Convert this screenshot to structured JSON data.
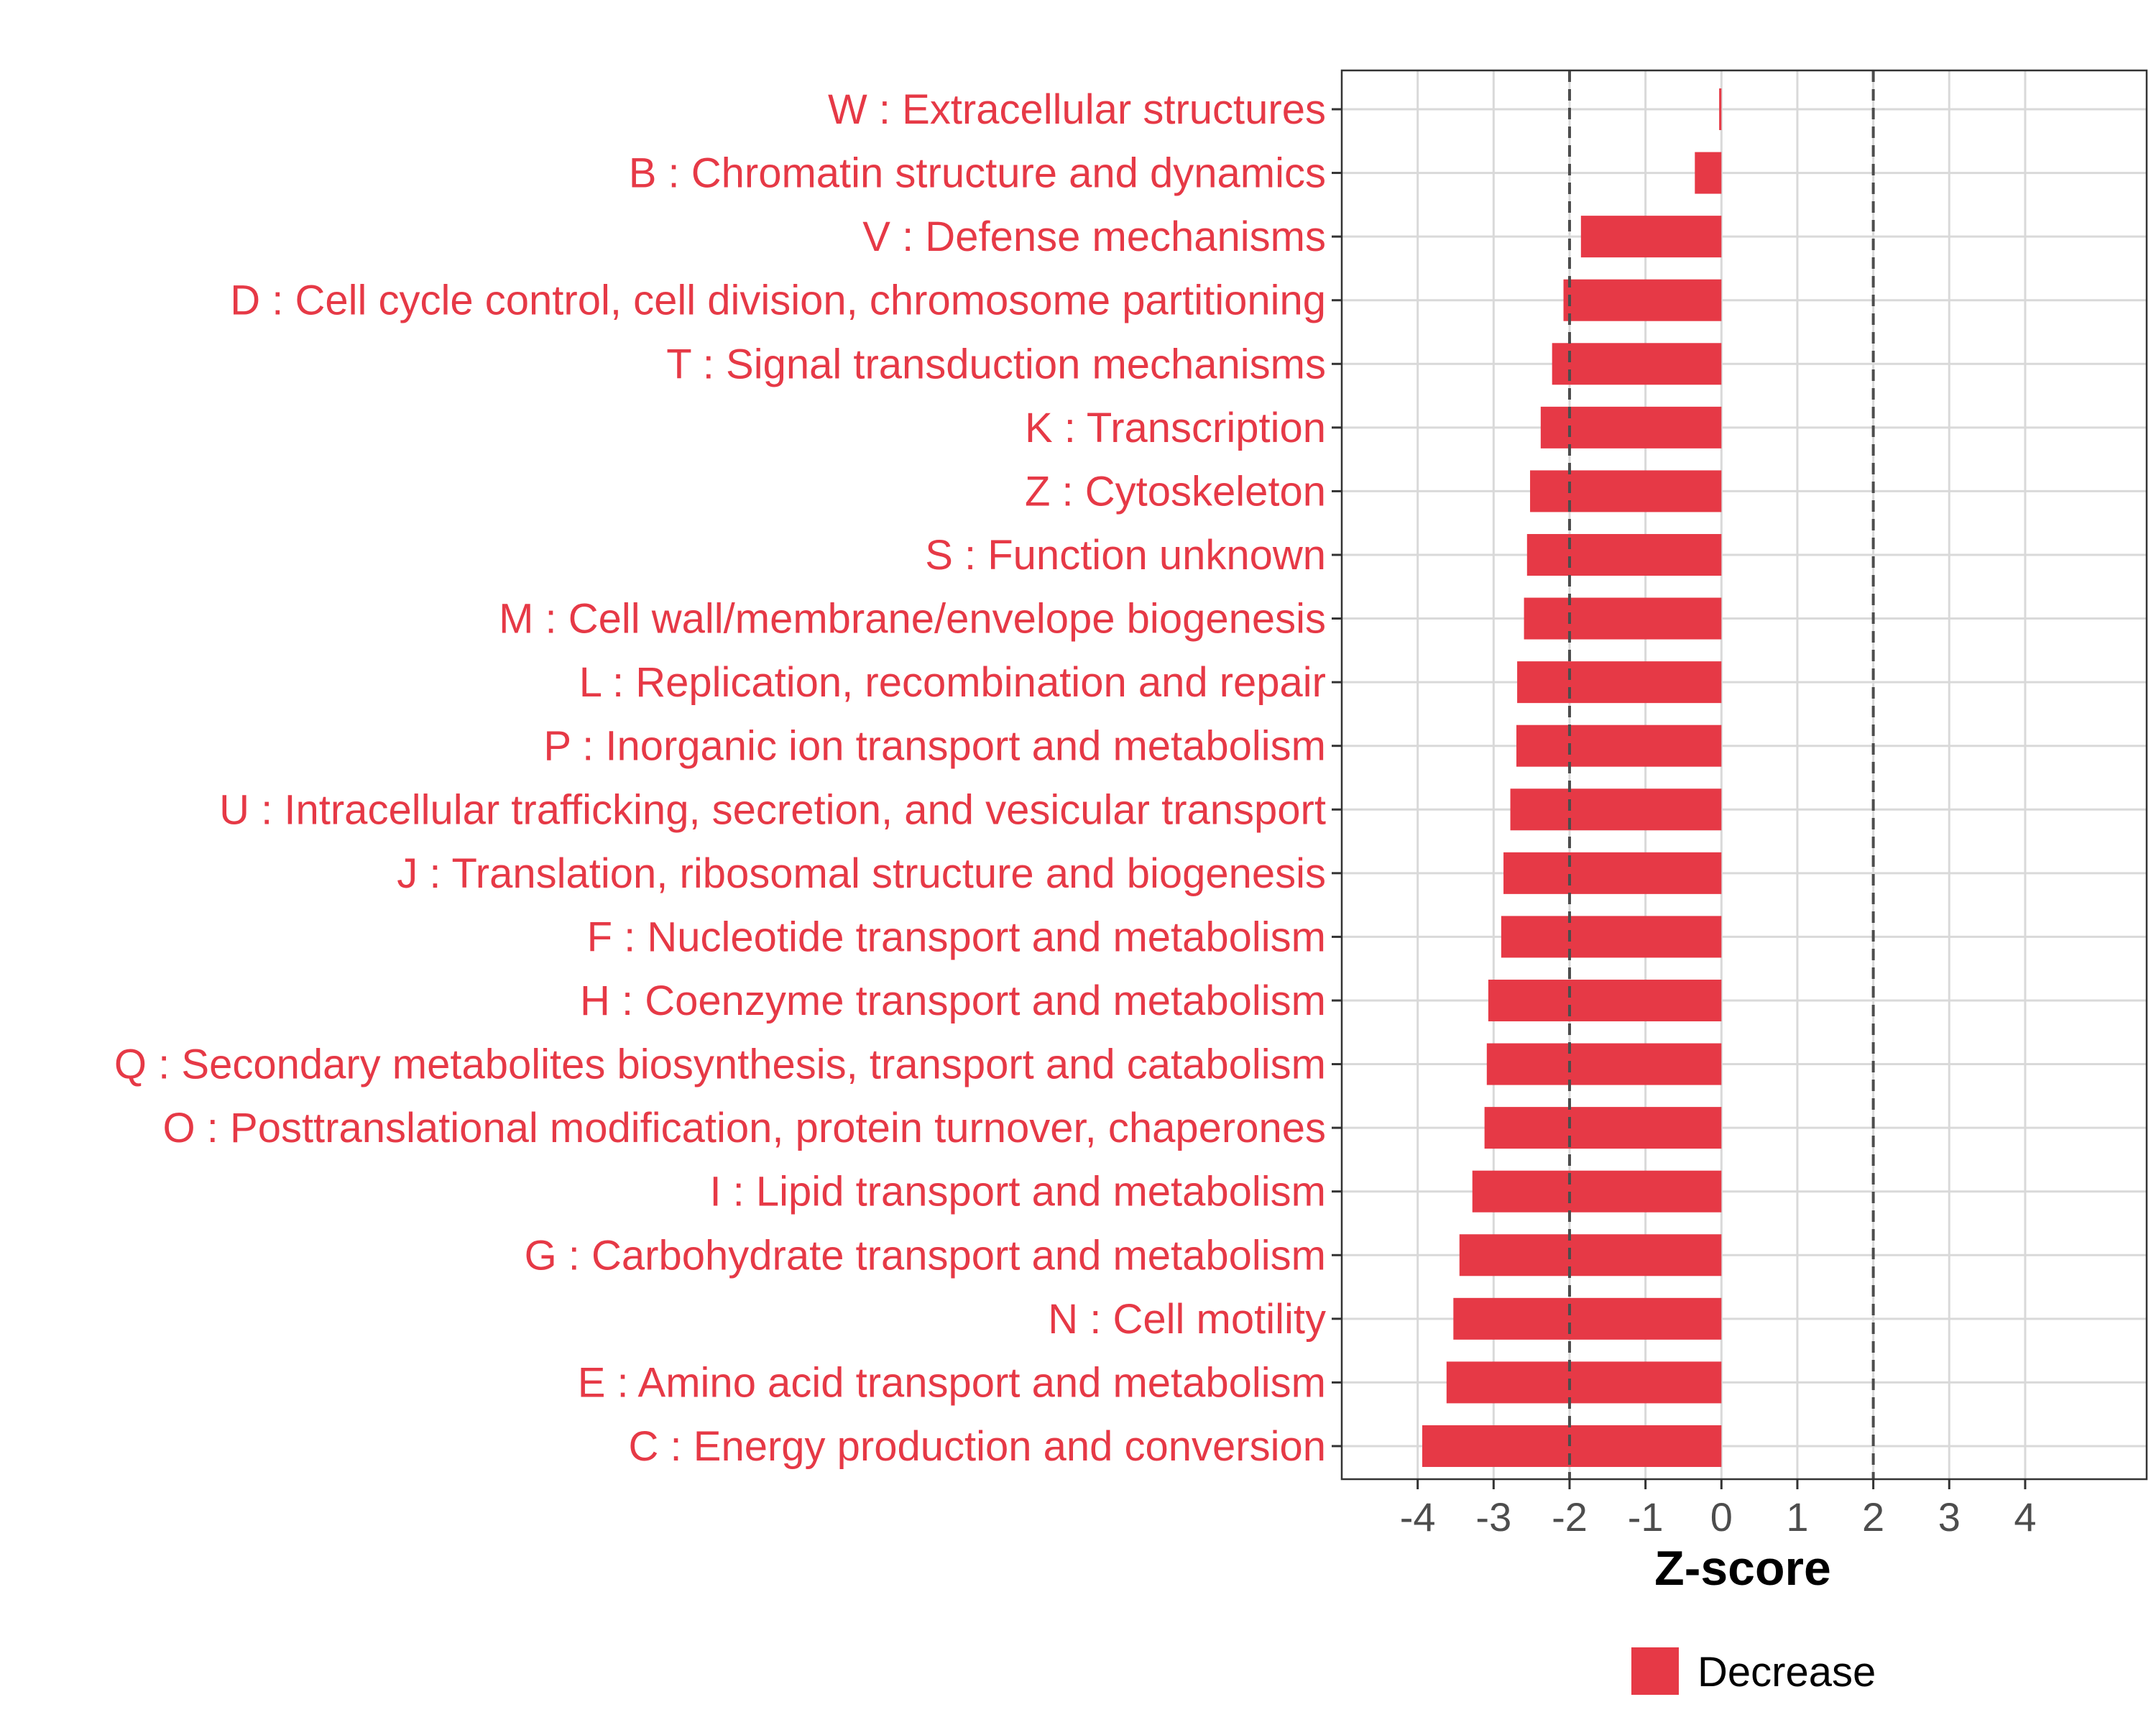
{
  "chart_data": {
    "type": "bar",
    "orientation": "horizontal",
    "xlabel": "Z-score",
    "ylabel": "",
    "xlim": [
      -5.0,
      5.6
    ],
    "x_ticks": [
      -4,
      -3,
      -2,
      -1,
      0,
      1,
      2,
      3,
      4
    ],
    "x_tick_labels": [
      "-4",
      "-3",
      "-2",
      "-1",
      "0",
      "1",
      "2",
      "3",
      "4"
    ],
    "reference_lines": [
      -2,
      2
    ],
    "grid": true,
    "categories": [
      "W : Extracellular structures",
      "B : Chromatin structure and dynamics",
      "V : Defense mechanisms",
      "D : Cell cycle control, cell division, chromosome partitioning",
      "T : Signal transduction mechanisms",
      "K : Transcription",
      "Z : Cytoskeleton",
      "S : Function unknown",
      "M : Cell wall/membrane/envelope biogenesis",
      "L : Replication, recombination and repair",
      "P : Inorganic ion transport and metabolism",
      "U : Intracellular trafficking, secretion, and vesicular transport",
      "J : Translation, ribosomal structure and biogenesis",
      "F : Nucleotide transport and metabolism",
      "H : Coenzyme transport and metabolism",
      "Q : Secondary metabolites biosynthesis, transport and catabolism",
      "O : Posttranslational modification, protein turnover, chaperones",
      "I : Lipid transport and metabolism",
      "G : Carbohydrate transport and metabolism",
      "N : Cell motility",
      "E : Amino acid transport and metabolism",
      "C : Energy production and conversion"
    ],
    "series": [
      {
        "name": "Decrease",
        "color": "#e63946",
        "values": [
          -0.03,
          -0.35,
          -1.85,
          -2.08,
          -2.23,
          -2.38,
          -2.52,
          -2.56,
          -2.6,
          -2.69,
          -2.7,
          -2.78,
          -2.87,
          -2.9,
          -3.07,
          -3.09,
          -3.12,
          -3.28,
          -3.45,
          -3.53,
          -3.62,
          -3.94
        ]
      }
    ],
    "legend": {
      "position": "bottom",
      "entries": [
        "Decrease"
      ]
    }
  },
  "colors": {
    "bar": "#e63946",
    "label": "#e63946",
    "grid": "#d9d9d9",
    "panel_border": "#333333",
    "ref_line": "#4d4d4d",
    "tick_text": "#4d4d4d"
  }
}
